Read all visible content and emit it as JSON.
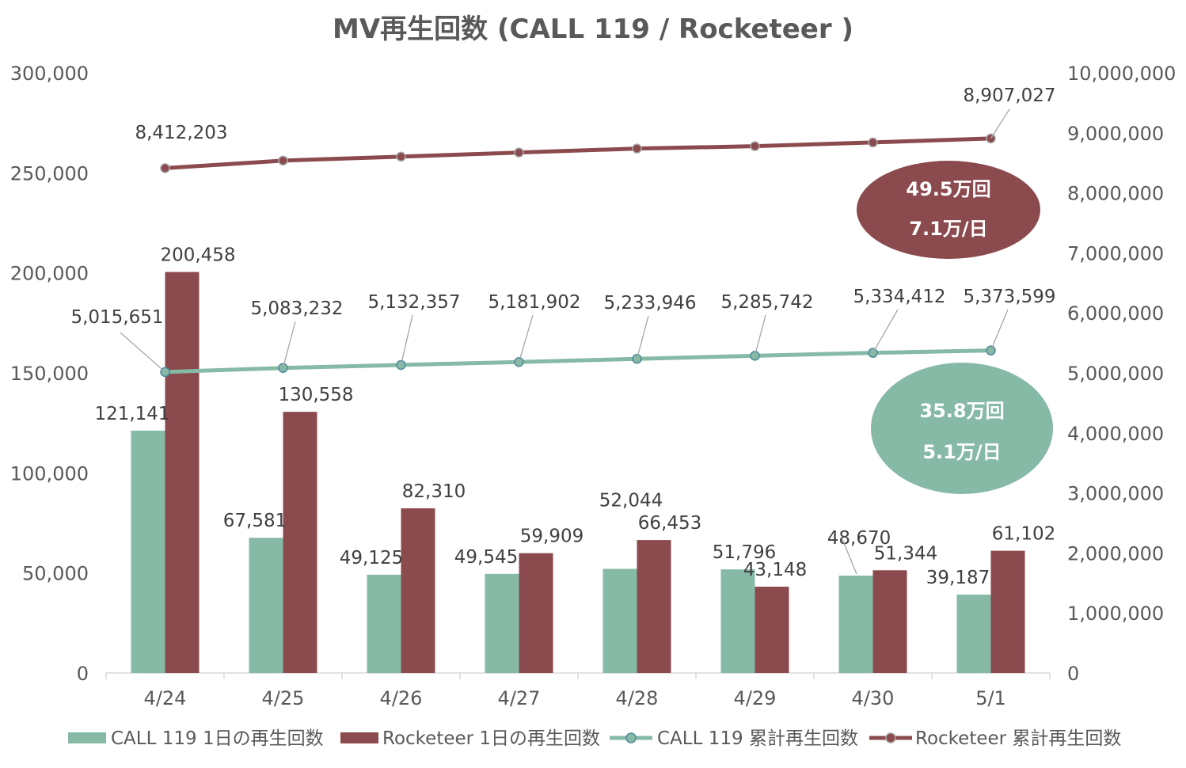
{
  "chart_data": {
    "type": "bar",
    "title": "MV再生回数 (CALL 119 / Rocketeer )",
    "categories": [
      "4/24",
      "4/25",
      "4/26",
      "4/27",
      "4/28",
      "4/29",
      "4/30",
      "5/1"
    ],
    "y_left": {
      "ylim": [
        0,
        300000
      ],
      "ticks": [
        "0",
        "50,000",
        "100,000",
        "150,000",
        "200,000",
        "250,000",
        "300,000"
      ]
    },
    "y_right": {
      "ylim": [
        0,
        10000000
      ],
      "ticks": [
        "0",
        "1,000,000",
        "2,000,000",
        "3,000,000",
        "4,000,000",
        "5,000,000",
        "6,000,000",
        "7,000,000",
        "8,000,000",
        "9,000,000",
        "10,000,000"
      ]
    },
    "grid": false,
    "legend_position": "bottom",
    "series": [
      {
        "name": "CALL 119 1日の再生回数",
        "kind": "bar",
        "axis": "left",
        "color": "#86b9a6",
        "values": [
          121141,
          67581,
          49125,
          49545,
          52044,
          51796,
          48670,
          39187
        ],
        "labels": [
          "121,141",
          "67,581",
          "49,125",
          "49,545",
          "52,044",
          "51,796",
          "48,670",
          "39,187"
        ]
      },
      {
        "name": "Rocketeer 1日の再生回数",
        "kind": "bar",
        "axis": "left",
        "color": "#8b4a4e",
        "values": [
          200458,
          130558,
          82310,
          59909,
          66453,
          43148,
          51344,
          61102
        ],
        "labels": [
          "200,458",
          "130,558",
          "82,310",
          "59,909",
          "66,453",
          "43,148",
          "51,344",
          "61,102"
        ]
      },
      {
        "name": "CALL 119 累計再生回数",
        "kind": "line",
        "axis": "right",
        "color": "#86b9a6",
        "values": [
          5015651,
          5083232,
          5132357,
          5181902,
          5233946,
          5285742,
          5334412,
          5373599
        ],
        "labels": [
          "5,015,651",
          "5,083,232",
          "5,132,357",
          "5,181,902",
          "5,233,946",
          "5,285,742",
          "5,334,412",
          "5,373,599"
        ]
      },
      {
        "name": "Rocketeer 累計再生回数",
        "kind": "line",
        "axis": "right",
        "color": "#8b4a4e",
        "values": [
          8412203,
          8538000,
          8604000,
          8672000,
          8738000,
          8778000,
          8840000,
          8907027
        ],
        "labels": [
          "8,412,203",
          "",
          "",
          "",
          "",
          "",
          "",
          "8,907,027"
        ]
      }
    ],
    "annotations": [
      {
        "line1": "49.5万回",
        "line2": "7.1万/日",
        "color": "#8b4a4e"
      },
      {
        "line1": "35.8万回",
        "line2": "5.1万/日",
        "color": "#86b9a6"
      }
    ]
  }
}
